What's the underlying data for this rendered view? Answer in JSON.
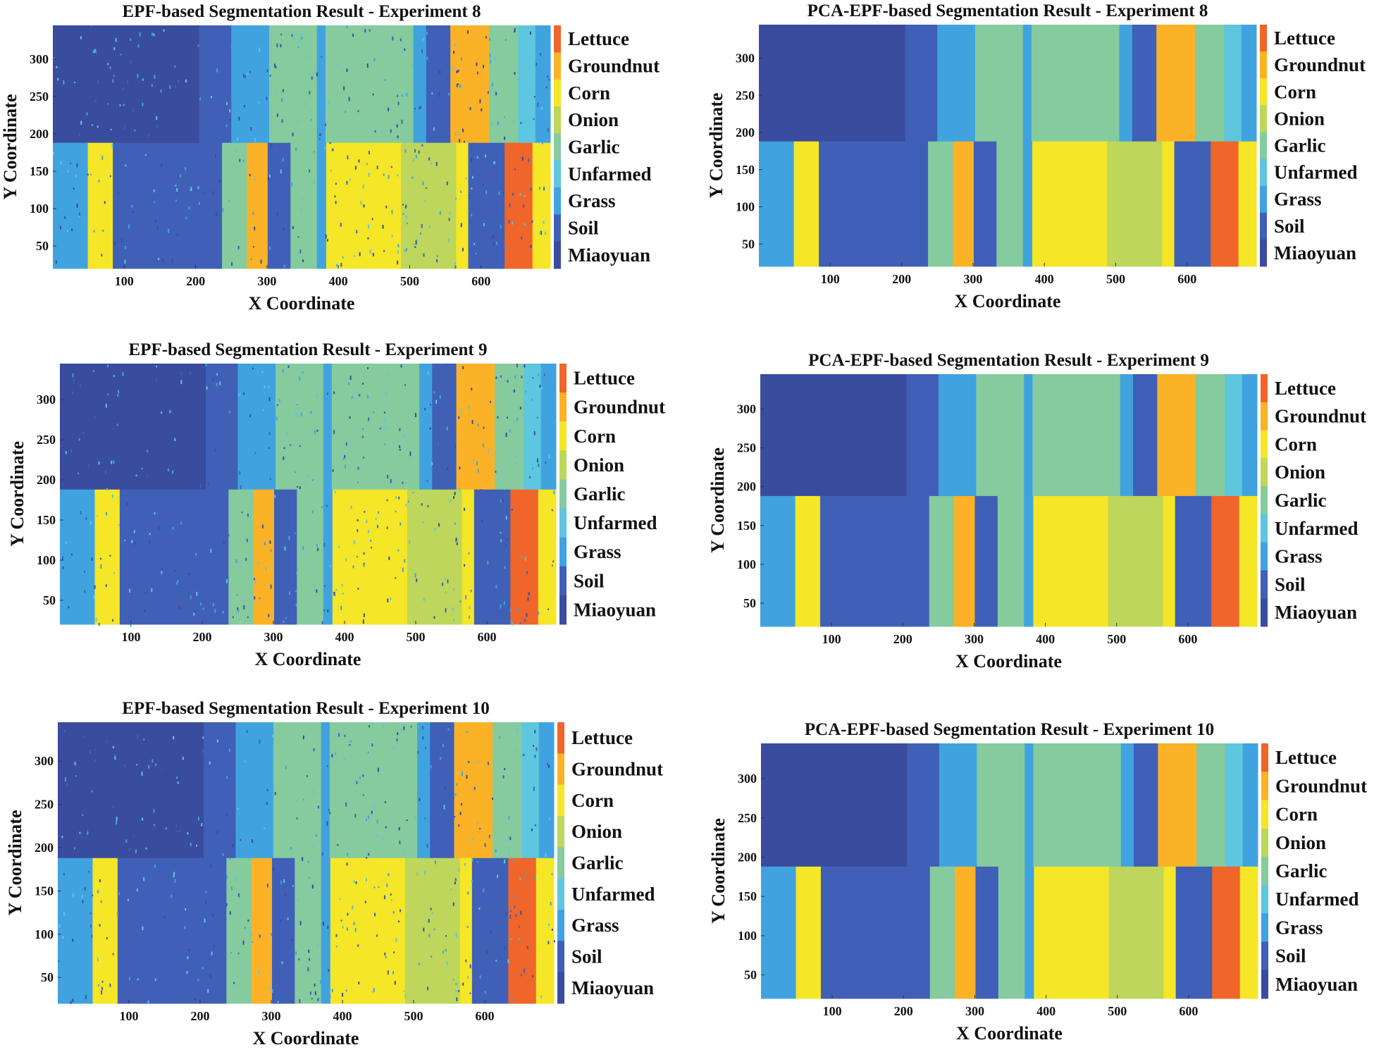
{
  "classes": [
    {
      "name": "Lettuce",
      "color": "#f0652a"
    },
    {
      "name": "Groundnut",
      "color": "#fbb226"
    },
    {
      "name": "Corn",
      "color": "#f5e627"
    },
    {
      "name": "Onion",
      "color": "#bdd65b"
    },
    {
      "name": "Garlic",
      "color": "#85cb9e"
    },
    {
      "name": "Unfarmed",
      "color": "#5ec6de"
    },
    {
      "name": "Grass",
      "color": "#40a3e0"
    },
    {
      "name": "Soil",
      "color": "#3f60b6"
    },
    {
      "name": "Miaoyuan",
      "color": "#3a4c9e"
    }
  ],
  "chart_data": [
    {
      "type": "heatmap",
      "title": "EPF-based Segmentation Result - Experiment 8",
      "xlabel": "X Coordinate",
      "ylabel": "Y Coordinate",
      "xlim": [
        0,
        697
      ],
      "ylim": [
        20,
        345
      ],
      "xticks": [
        100,
        200,
        300,
        400,
        500,
        600
      ],
      "yticks": [
        50,
        100,
        150,
        200,
        250,
        300
      ],
      "legend": "right colorbar",
      "noisy": true
    },
    {
      "type": "heatmap",
      "title": "PCA-EPF-based Segmentation Result - Experiment 8",
      "xlabel": "X Coordinate",
      "ylabel": "Y Coordinate",
      "xlim": [
        0,
        697
      ],
      "ylim": [
        20,
        345
      ],
      "xticks": [
        100,
        200,
        300,
        400,
        500,
        600
      ],
      "yticks": [
        50,
        100,
        150,
        200,
        250,
        300
      ],
      "legend": "right colorbar",
      "noisy": false
    },
    {
      "type": "heatmap",
      "title": "EPF-based Segmentation Result - Experiment 9",
      "xlabel": "X Coordinate",
      "ylabel": "Y Coordinate",
      "xlim": [
        0,
        697
      ],
      "ylim": [
        20,
        345
      ],
      "xticks": [
        100,
        200,
        300,
        400,
        500,
        600
      ],
      "yticks": [
        50,
        100,
        150,
        200,
        250,
        300
      ],
      "legend": "right colorbar",
      "noisy": true
    },
    {
      "type": "heatmap",
      "title": "PCA-EPF-based Segmentation Result - Experiment 9",
      "xlabel": "X Coordinate",
      "ylabel": "Y Coordinate",
      "xlim": [
        0,
        697
      ],
      "ylim": [
        20,
        345
      ],
      "xticks": [
        100,
        200,
        300,
        400,
        500,
        600
      ],
      "yticks": [
        50,
        100,
        150,
        200,
        250,
        300
      ],
      "legend": "right colorbar",
      "noisy": false
    },
    {
      "type": "heatmap",
      "title": "EPF-based Segmentation Result - Experiment 10",
      "xlabel": "X Coordinate",
      "ylabel": "Y Coordinate",
      "xlim": [
        0,
        697
      ],
      "ylim": [
        20,
        345
      ],
      "xticks": [
        100,
        200,
        300,
        400,
        500,
        600
      ],
      "yticks": [
        50,
        100,
        150,
        200,
        250,
        300
      ],
      "legend": "right colorbar",
      "noisy": true
    },
    {
      "type": "heatmap",
      "title": "PCA-EPF-based Segmentation Result - Experiment 10",
      "xlabel": "X Coordinate",
      "ylabel": "Y Coordinate",
      "xlim": [
        0,
        697
      ],
      "ylim": [
        20,
        345
      ],
      "xticks": [
        100,
        200,
        300,
        400,
        500,
        600
      ],
      "yticks": [
        50,
        100,
        150,
        200,
        250,
        300
      ],
      "legend": "right colorbar",
      "noisy": false
    }
  ],
  "regions": {
    "upper_band": {
      "y": [
        188,
        345
      ],
      "segments": [
        [
          0,
          205,
          "Miaoyuan"
        ],
        [
          205,
          250,
          "Soil"
        ],
        [
          250,
          303,
          "Grass"
        ],
        [
          303,
          370,
          "Garlic"
        ],
        [
          370,
          382,
          "Grass"
        ],
        [
          382,
          505,
          "Garlic"
        ],
        [
          505,
          523,
          "Grass"
        ],
        [
          523,
          557,
          "Soil"
        ],
        [
          557,
          611,
          "Groundnut"
        ],
        [
          611,
          652,
          "Garlic"
        ],
        [
          652,
          676,
          "Unfarmed"
        ],
        [
          676,
          697,
          "Grass"
        ]
      ]
    },
    "lower_band": {
      "y": [
        20,
        188
      ],
      "segments": [
        [
          0,
          49,
          "Grass"
        ],
        [
          49,
          84,
          "Corn"
        ],
        [
          84,
          237,
          "Soil"
        ],
        [
          237,
          272,
          "Garlic"
        ],
        [
          272,
          301,
          "Groundnut"
        ],
        [
          301,
          333,
          "Soil"
        ],
        [
          333,
          370,
          "Garlic"
        ],
        [
          370,
          383,
          "Grass"
        ],
        [
          383,
          488,
          "Corn"
        ],
        [
          488,
          565,
          "Onion"
        ],
        [
          565,
          582,
          "Corn"
        ],
        [
          582,
          633,
          "Soil"
        ],
        [
          633,
          672,
          "Lettuce"
        ],
        [
          672,
          697,
          "Corn"
        ]
      ]
    }
  }
}
